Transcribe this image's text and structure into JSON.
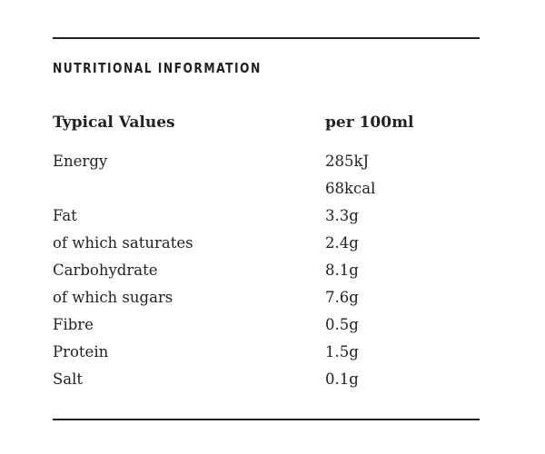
{
  "heading": "NUTRITIONAL INFORMATION",
  "table": {
    "header": [
      "Typical Values",
      "per 100ml"
    ],
    "rows": [
      {
        "label": "Energy",
        "values": [
          "285kJ",
          "68kcal"
        ]
      },
      {
        "label": "Fat",
        "values": [
          "3.3g"
        ]
      },
      {
        "label": "of which saturates",
        "values": [
          "2.4g"
        ]
      },
      {
        "label": "Carbohydrate",
        "values": [
          "8.1g"
        ]
      },
      {
        "label": "of which sugars",
        "values": [
          "7.6g"
        ]
      },
      {
        "label": "Fibre",
        "values": [
          "0.5g"
        ]
      },
      {
        "label": "Protein",
        "values": [
          "1.5g"
        ]
      },
      {
        "label": "Salt",
        "values": [
          "0.1g"
        ]
      }
    ]
  }
}
